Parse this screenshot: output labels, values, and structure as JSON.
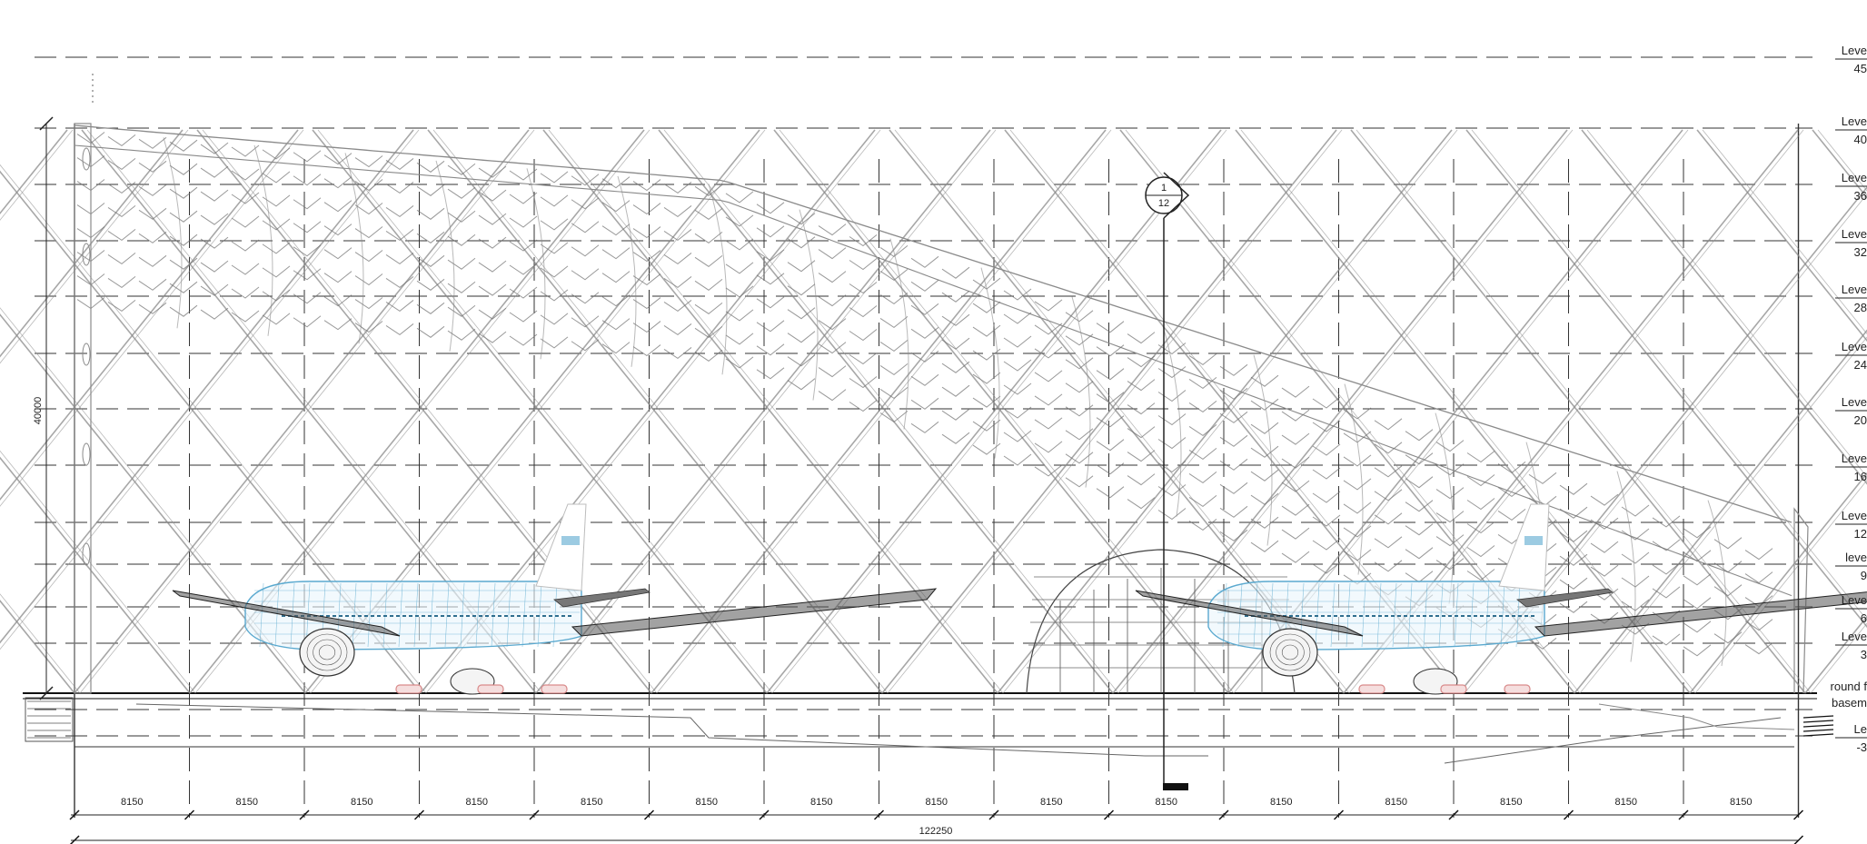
{
  "drawing": {
    "overall_width_label": "122250",
    "height_label": "40000",
    "bay_labels": [
      "8150",
      "8150",
      "8150",
      "8150",
      "8150",
      "8150",
      "8150",
      "8150",
      "8150",
      "8150",
      "8150",
      "8150",
      "8150",
      "8150",
      "8150"
    ],
    "section_marker": {
      "top": "1",
      "bottom": "12"
    },
    "levels": [
      {
        "name": "Leve",
        "value": "45"
      },
      {
        "name": "Leve",
        "value": "40"
      },
      {
        "name": "Leve",
        "value": "36"
      },
      {
        "name": "Leve",
        "value": "32"
      },
      {
        "name": "Leve",
        "value": "28"
      },
      {
        "name": "Leve",
        "value": "24"
      },
      {
        "name": "Leve",
        "value": "20"
      },
      {
        "name": "Leve",
        "value": "16"
      },
      {
        "name": "Leve",
        "value": "12"
      },
      {
        "name": "leve",
        "value": "9"
      },
      {
        "name": "Leve",
        "value": "6"
      },
      {
        "name": "Leve",
        "value": "3"
      },
      {
        "name": "round f",
        "value": ""
      },
      {
        "name": "basem",
        "value": ""
      },
      {
        "name": "Le",
        "value": "-3"
      }
    ],
    "colors": {
      "line": "#333333",
      "structure": "#8a8a8a",
      "plane": "#5aa9cf",
      "gear": "#d98a8a"
    }
  }
}
